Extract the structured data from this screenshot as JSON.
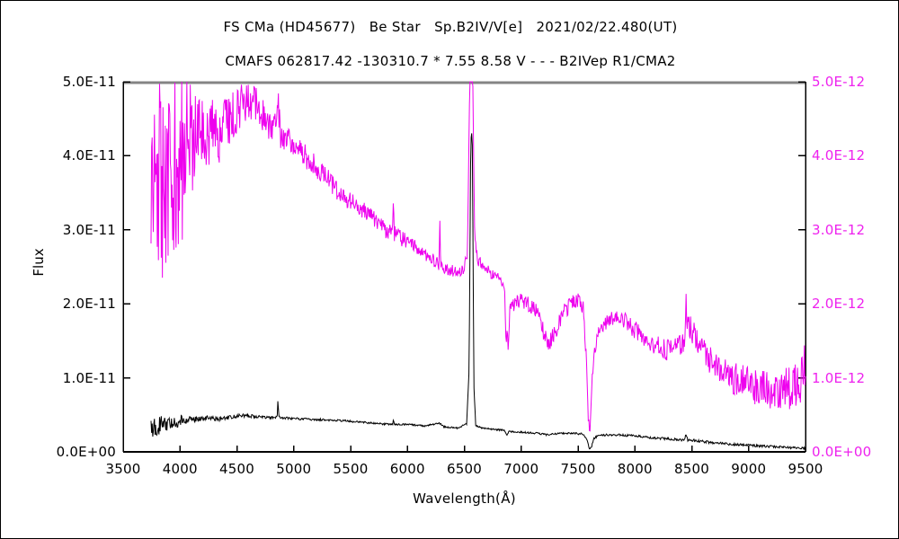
{
  "header": {
    "line1": "FS CMa (HD45677)   Be Star   Sp.B2IV/V[e]   2021/02/22.480(UT)",
    "line2": "CMAFS 062817.42 -130310.7 * 7.55 8.58 V - - - B2IVep R1/CMA2"
  },
  "colors": {
    "black_series": "#000000",
    "magenta_series": "#ee00ee",
    "magenta_labels": "#ee22ee",
    "frame": "#000000",
    "frame_top": "#848484",
    "background": "#ffffff"
  },
  "chart_data": {
    "type": "line",
    "title": "FS CMa (HD45677)   Be Star   Sp.B2IV/V[e]   2021/02/22.480(UT)",
    "subtitle": "CMAFS 062817.42 -130310.7 * 7.55 8.58 V - - - B2IVep R1/CMA2",
    "xlabel": "Wavelength(Å)",
    "ylabel": "Flux",
    "grid": false,
    "legend_position": "none",
    "x_axis": {
      "min": 3500,
      "max": 9500,
      "ticks": [
        3500,
        4000,
        4500,
        5000,
        5500,
        6000,
        6500,
        7000,
        7500,
        8000,
        8500,
        9000,
        9500
      ]
    },
    "left_axis": {
      "label": "Flux",
      "color": "#000000",
      "tick_values": [
        0,
        1,
        2,
        3,
        4,
        5
      ],
      "tick_labels": [
        "0.0E+00",
        "1.0E-11",
        "2.0E-11",
        "3.0E-11",
        "4.0E-11",
        "5.0E-11"
      ]
    },
    "right_axis": {
      "color": "#ee22ee",
      "tick_values": [
        0,
        1,
        2,
        3,
        4,
        5
      ],
      "tick_labels": [
        "0.0E+00",
        "1.0E-12",
        "2.0E-12",
        "3.0E-12",
        "4.0E-12",
        "5.0E-12"
      ]
    },
    "series": [
      {
        "name": "flux-spectrum-black",
        "axis": "left",
        "color": "#000000",
        "value_unit": "1.0E-11",
        "baseline": [
          [
            3745,
            0.3
          ],
          [
            3780,
            0.34
          ],
          [
            3850,
            0.37
          ],
          [
            3920,
            0.4
          ],
          [
            4000,
            0.42
          ],
          [
            4080,
            0.44
          ],
          [
            4160,
            0.45
          ],
          [
            4260,
            0.46
          ],
          [
            4330,
            0.44
          ],
          [
            4400,
            0.46
          ],
          [
            4480,
            0.48
          ],
          [
            4560,
            0.49
          ],
          [
            4640,
            0.48
          ],
          [
            4730,
            0.47
          ],
          [
            4820,
            0.46
          ],
          [
            4855,
            0.48
          ],
          [
            4861,
            0.72
          ],
          [
            4868,
            0.48
          ],
          [
            4900,
            0.46
          ],
          [
            5000,
            0.45
          ],
          [
            5150,
            0.44
          ],
          [
            5300,
            0.43
          ],
          [
            5450,
            0.42
          ],
          [
            5600,
            0.4
          ],
          [
            5750,
            0.38
          ],
          [
            5870,
            0.37
          ],
          [
            5876,
            0.44
          ],
          [
            5884,
            0.37
          ],
          [
            6000,
            0.37
          ],
          [
            6150,
            0.35
          ],
          [
            6280,
            0.39
          ],
          [
            6320,
            0.34
          ],
          [
            6440,
            0.32
          ],
          [
            6520,
            0.38
          ],
          [
            6542,
            1.1
          ],
          [
            6556,
            4.1
          ],
          [
            6563,
            4.37
          ],
          [
            6571,
            4.1
          ],
          [
            6584,
            0.9
          ],
          [
            6600,
            0.36
          ],
          [
            6640,
            0.33
          ],
          [
            6720,
            0.31
          ],
          [
            6800,
            0.3
          ],
          [
            6855,
            0.29
          ],
          [
            6872,
            0.23
          ],
          [
            6890,
            0.27
          ],
          [
            6960,
            0.27
          ],
          [
            7060,
            0.26
          ],
          [
            7150,
            0.25
          ],
          [
            7220,
            0.23
          ],
          [
            7280,
            0.24
          ],
          [
            7360,
            0.25
          ],
          [
            7460,
            0.25
          ],
          [
            7540,
            0.24
          ],
          [
            7580,
            0.16
          ],
          [
            7596,
            0.05
          ],
          [
            7605,
            0.03
          ],
          [
            7618,
            0.07
          ],
          [
            7640,
            0.18
          ],
          [
            7680,
            0.22
          ],
          [
            7760,
            0.23
          ],
          [
            7850,
            0.23
          ],
          [
            7950,
            0.22
          ],
          [
            8050,
            0.21
          ],
          [
            8150,
            0.19
          ],
          [
            8250,
            0.18
          ],
          [
            8350,
            0.17
          ],
          [
            8430,
            0.16
          ],
          [
            8450,
            0.23
          ],
          [
            8465,
            0.16
          ],
          [
            8550,
            0.15
          ],
          [
            8650,
            0.13
          ],
          [
            8760,
            0.12
          ],
          [
            8870,
            0.1
          ],
          [
            8980,
            0.09
          ],
          [
            9100,
            0.08
          ],
          [
            9220,
            0.07
          ],
          [
            9340,
            0.06
          ],
          [
            9440,
            0.05
          ],
          [
            9500,
            0.05
          ]
        ],
        "noise_amplitude": [
          [
            3745,
            0.16
          ],
          [
            3850,
            0.13
          ],
          [
            3950,
            0.1
          ],
          [
            4050,
            0.06
          ],
          [
            4150,
            0.04
          ],
          [
            4300,
            0.03
          ],
          [
            4500,
            0.025
          ],
          [
            4700,
            0.02
          ],
          [
            5000,
            0.015
          ],
          [
            5500,
            0.013
          ],
          [
            6000,
            0.012
          ],
          [
            6500,
            0.01
          ],
          [
            7000,
            0.013
          ],
          [
            7400,
            0.012
          ],
          [
            7700,
            0.015
          ],
          [
            8100,
            0.015
          ],
          [
            8500,
            0.018
          ],
          [
            8900,
            0.018
          ],
          [
            9200,
            0.015
          ],
          [
            9500,
            0.015
          ]
        ]
      },
      {
        "name": "flux-spectrum-magenta",
        "axis": "right",
        "color": "#ee00ee",
        "value_unit": "1.0E-12",
        "baseline": [
          [
            3745,
            3.2
          ],
          [
            3760,
            3.6
          ],
          [
            3800,
            3.65
          ],
          [
            3850,
            3.7
          ],
          [
            3900,
            3.8
          ],
          [
            3950,
            3.9
          ],
          [
            4000,
            4.0
          ],
          [
            4060,
            4.05
          ],
          [
            4120,
            4.15
          ],
          [
            4180,
            4.25
          ],
          [
            4240,
            4.3
          ],
          [
            4300,
            4.35
          ],
          [
            4340,
            4.15
          ],
          [
            4380,
            4.4
          ],
          [
            4440,
            4.5
          ],
          [
            4500,
            4.6
          ],
          [
            4550,
            4.68
          ],
          [
            4600,
            4.72
          ],
          [
            4660,
            4.68
          ],
          [
            4720,
            4.58
          ],
          [
            4780,
            4.45
          ],
          [
            4840,
            4.35
          ],
          [
            4855,
            4.55
          ],
          [
            4861,
            4.85
          ],
          [
            4868,
            4.55
          ],
          [
            4885,
            4.3
          ],
          [
            4950,
            4.22
          ],
          [
            5000,
            4.15
          ],
          [
            5100,
            4.0
          ],
          [
            5200,
            3.85
          ],
          [
            5300,
            3.68
          ],
          [
            5400,
            3.5
          ],
          [
            5500,
            3.38
          ],
          [
            5600,
            3.28
          ],
          [
            5700,
            3.15
          ],
          [
            5800,
            3.0
          ],
          [
            5868,
            2.95
          ],
          [
            5876,
            3.35
          ],
          [
            5884,
            2.95
          ],
          [
            5950,
            2.88
          ],
          [
            6050,
            2.8
          ],
          [
            6150,
            2.68
          ],
          [
            6240,
            2.58
          ],
          [
            6278,
            2.52
          ],
          [
            6285,
            3.1
          ],
          [
            6292,
            2.5
          ],
          [
            6360,
            2.47
          ],
          [
            6440,
            2.43
          ],
          [
            6500,
            2.45
          ],
          [
            6528,
            2.7
          ],
          [
            6545,
            4.6
          ],
          [
            6555,
            5.7
          ],
          [
            6570,
            5.7
          ],
          [
            6582,
            3.9
          ],
          [
            6592,
            2.9
          ],
          [
            6610,
            2.65
          ],
          [
            6650,
            2.5
          ],
          [
            6700,
            2.45
          ],
          [
            6760,
            2.4
          ],
          [
            6820,
            2.32
          ],
          [
            6852,
            2.25
          ],
          [
            6862,
            1.7
          ],
          [
            6870,
            1.45
          ],
          [
            6877,
            1.65
          ],
          [
            6884,
            1.42
          ],
          [
            6900,
            1.9
          ],
          [
            6940,
            2.0
          ],
          [
            6990,
            2.05
          ],
          [
            7060,
            2.0
          ],
          [
            7120,
            1.95
          ],
          [
            7160,
            1.85
          ],
          [
            7200,
            1.6
          ],
          [
            7240,
            1.48
          ],
          [
            7280,
            1.55
          ],
          [
            7330,
            1.75
          ],
          [
            7380,
            1.9
          ],
          [
            7440,
            2.0
          ],
          [
            7500,
            2.05
          ],
          [
            7545,
            1.95
          ],
          [
            7575,
            1.2
          ],
          [
            7592,
            0.38
          ],
          [
            7603,
            0.3
          ],
          [
            7614,
            0.55
          ],
          [
            7628,
            1.1
          ],
          [
            7650,
            1.4
          ],
          [
            7680,
            1.6
          ],
          [
            7730,
            1.72
          ],
          [
            7790,
            1.8
          ],
          [
            7860,
            1.82
          ],
          [
            7930,
            1.75
          ],
          [
            8000,
            1.65
          ],
          [
            8080,
            1.55
          ],
          [
            8160,
            1.47
          ],
          [
            8230,
            1.4
          ],
          [
            8300,
            1.37
          ],
          [
            8370,
            1.4
          ],
          [
            8432,
            1.48
          ],
          [
            8443,
            1.8
          ],
          [
            8449,
            2.28
          ],
          [
            8456,
            1.85
          ],
          [
            8475,
            1.7
          ],
          [
            8510,
            1.62
          ],
          [
            8560,
            1.5
          ],
          [
            8620,
            1.32
          ],
          [
            8700,
            1.18
          ],
          [
            8780,
            1.08
          ],
          [
            8860,
            1.0
          ],
          [
            8940,
            0.95
          ],
          [
            9020,
            0.9
          ],
          [
            9100,
            0.85
          ],
          [
            9180,
            0.82
          ],
          [
            9260,
            0.8
          ],
          [
            9340,
            0.85
          ],
          [
            9420,
            0.88
          ],
          [
            9470,
            1.0
          ],
          [
            9500,
            1.25
          ]
        ],
        "noise_amplitude": [
          [
            3745,
            1.55
          ],
          [
            3900,
            1.5
          ],
          [
            4000,
            1.2
          ],
          [
            4080,
            1.0
          ],
          [
            4160,
            0.6
          ],
          [
            4250,
            0.45
          ],
          [
            4400,
            0.35
          ],
          [
            4600,
            0.28
          ],
          [
            4800,
            0.22
          ],
          [
            5000,
            0.18
          ],
          [
            5300,
            0.14
          ],
          [
            5600,
            0.12
          ],
          [
            6000,
            0.1
          ],
          [
            6400,
            0.08
          ],
          [
            6563,
            0.1
          ],
          [
            6800,
            0.08
          ],
          [
            7000,
            0.1
          ],
          [
            7250,
            0.12
          ],
          [
            7500,
            0.1
          ],
          [
            7605,
            0.08
          ],
          [
            7800,
            0.1
          ],
          [
            8100,
            0.13
          ],
          [
            8400,
            0.16
          ],
          [
            8600,
            0.18
          ],
          [
            8900,
            0.22
          ],
          [
            9150,
            0.26
          ],
          [
            9350,
            0.3
          ],
          [
            9500,
            0.32
          ]
        ]
      }
    ]
  }
}
